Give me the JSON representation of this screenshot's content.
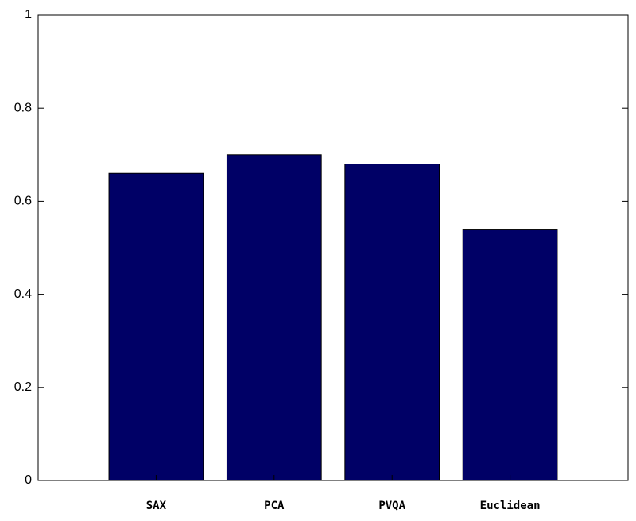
{
  "chart_data": {
    "type": "bar",
    "categories": [
      "SAX",
      "PCA",
      "PVQA",
      "Euclidean"
    ],
    "values": [
      0.66,
      0.7,
      0.68,
      0.54
    ],
    "color": "#000066",
    "ylim": [
      0,
      1
    ],
    "yticks": [
      0,
      0.2,
      0.4,
      0.6,
      0.8,
      1
    ],
    "grid": false
  }
}
